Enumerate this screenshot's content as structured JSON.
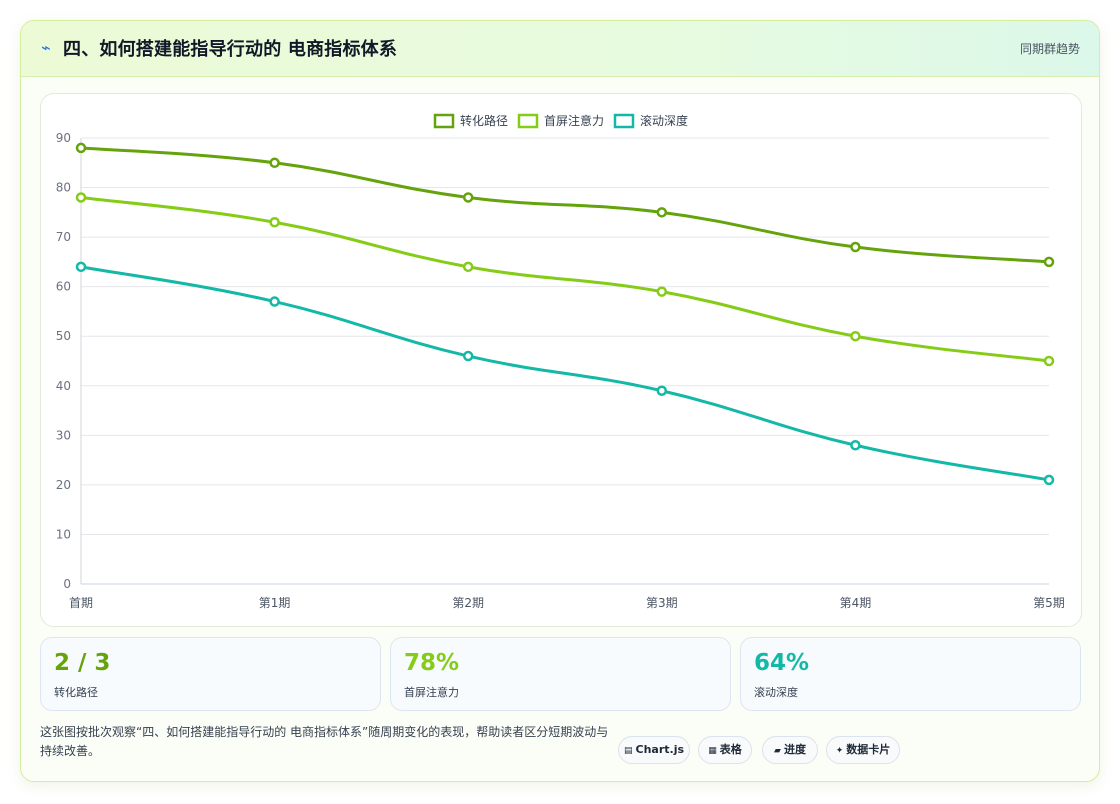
{
  "header": {
    "icon": "lightning-icon",
    "title": "四、如何搭建能指导行动的 电商指标体系",
    "link": "同期群趋势"
  },
  "chart_data": {
    "type": "line",
    "categories": [
      "首期",
      "第1期",
      "第2期",
      "第3期",
      "第4期",
      "第5期"
    ],
    "ylim": [
      0,
      90
    ],
    "yticks": [
      0,
      10,
      20,
      30,
      40,
      50,
      60,
      70,
      80,
      90
    ],
    "grid": true,
    "legend": "top-center",
    "series": [
      {
        "name": "转化路径",
        "color": "#65a30d",
        "values": [
          88,
          85,
          78,
          75,
          68,
          65
        ]
      },
      {
        "name": "首屏注意力",
        "color": "#84cc16",
        "values": [
          78,
          73,
          64,
          59,
          50,
          45
        ]
      },
      {
        "name": "滚动深度",
        "color": "#14b8a6",
        "values": [
          64,
          57,
          46,
          39,
          28,
          21
        ]
      }
    ]
  },
  "stats": [
    {
      "value": "2 / 3",
      "label": "转化路径",
      "color": "#65a30d"
    },
    {
      "value": "78%",
      "label": "首屏注意力",
      "color": "#84cc16"
    },
    {
      "value": "64%",
      "label": "滚动深度",
      "color": "#14b8a6"
    }
  ],
  "footer": {
    "description": "这张图按批次观察“四、如何搭建能指导行动的 电商指标体系”随周期变化的表现，帮助读者区分短期波动与持续改善。",
    "tags": [
      {
        "icon": "chart-icon",
        "label": "Chart.js"
      },
      {
        "icon": "table-icon",
        "label": "表格"
      },
      {
        "icon": "progress-icon",
        "label": "进度"
      },
      {
        "icon": "card-icon",
        "label": "数据卡片"
      }
    ]
  }
}
